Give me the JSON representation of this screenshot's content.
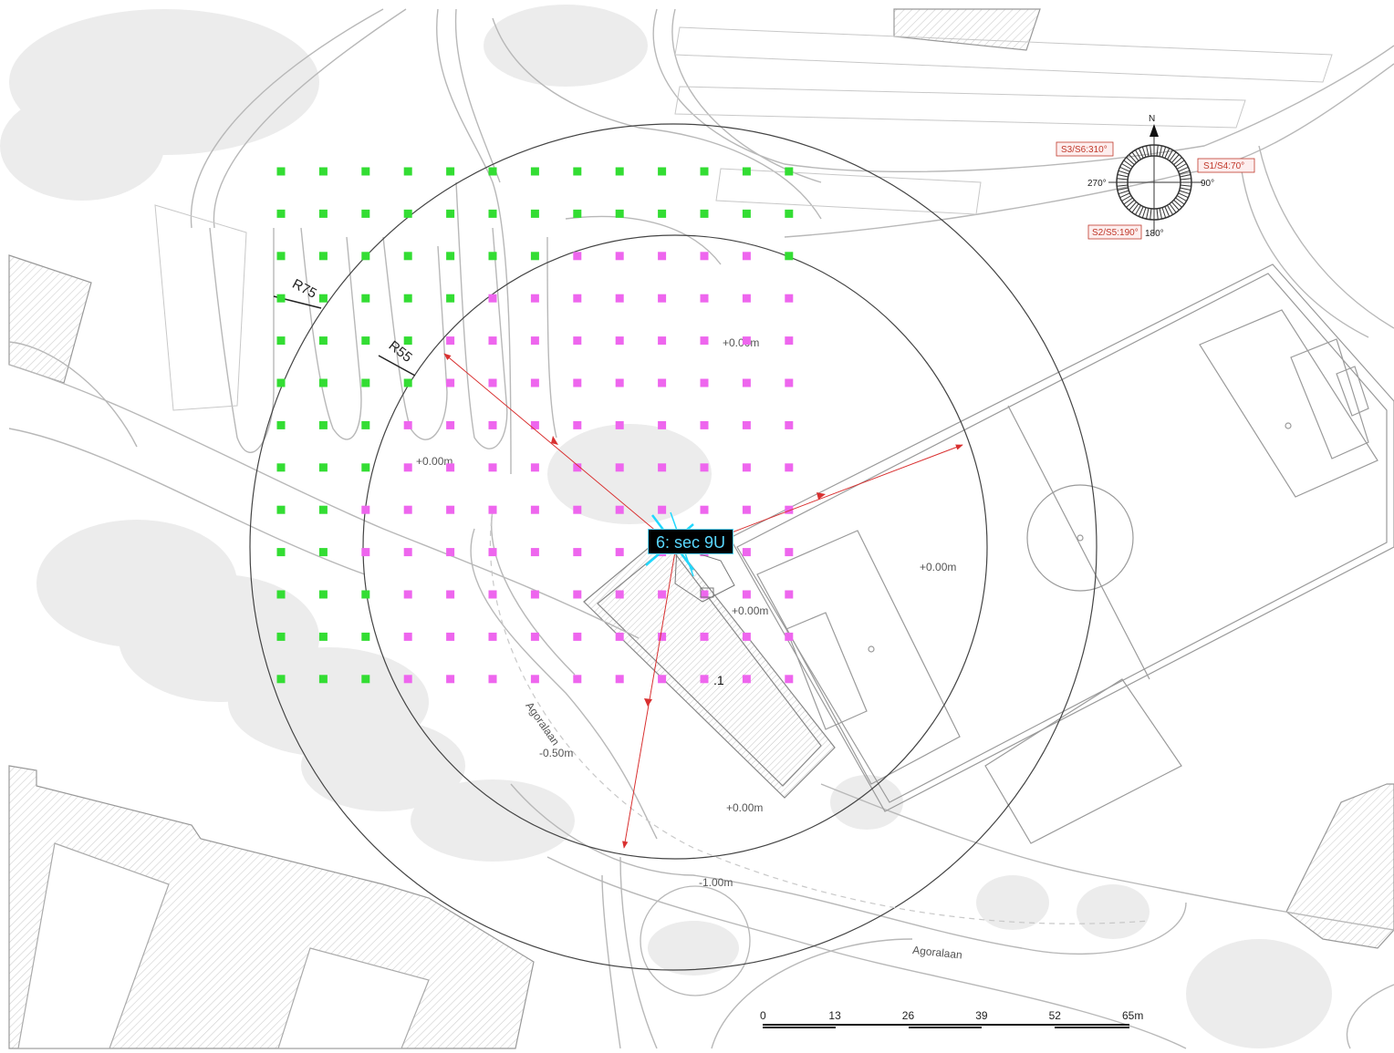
{
  "map": {
    "sector_label": "6: sec 9U",
    "point_marker": ".1",
    "radius_labels": {
      "outer": "R75",
      "inner": "R55"
    },
    "elevations": [
      "+0.00m",
      "+0.00m",
      "+0.00m",
      "+0.00m",
      "+0.00m",
      "-0.50m",
      "-1.00m"
    ],
    "street_names": [
      "Agoralaan",
      "Agoralaan"
    ],
    "compass": {
      "north": "N",
      "east": "90°",
      "south": "180°",
      "west": "270°",
      "tags": [
        "S3/S6:310°",
        "S1/S4:70°",
        "S2/S5:190°"
      ]
    },
    "scale_bar": {
      "ticks": [
        "0",
        "13",
        "26",
        "39",
        "52",
        "65m"
      ]
    },
    "colors": {
      "grid_inside": "#ee66ee",
      "grid_outside": "#33dd33",
      "arrow": "#d93030",
      "sector_text": "#5ad8ff"
    }
  }
}
